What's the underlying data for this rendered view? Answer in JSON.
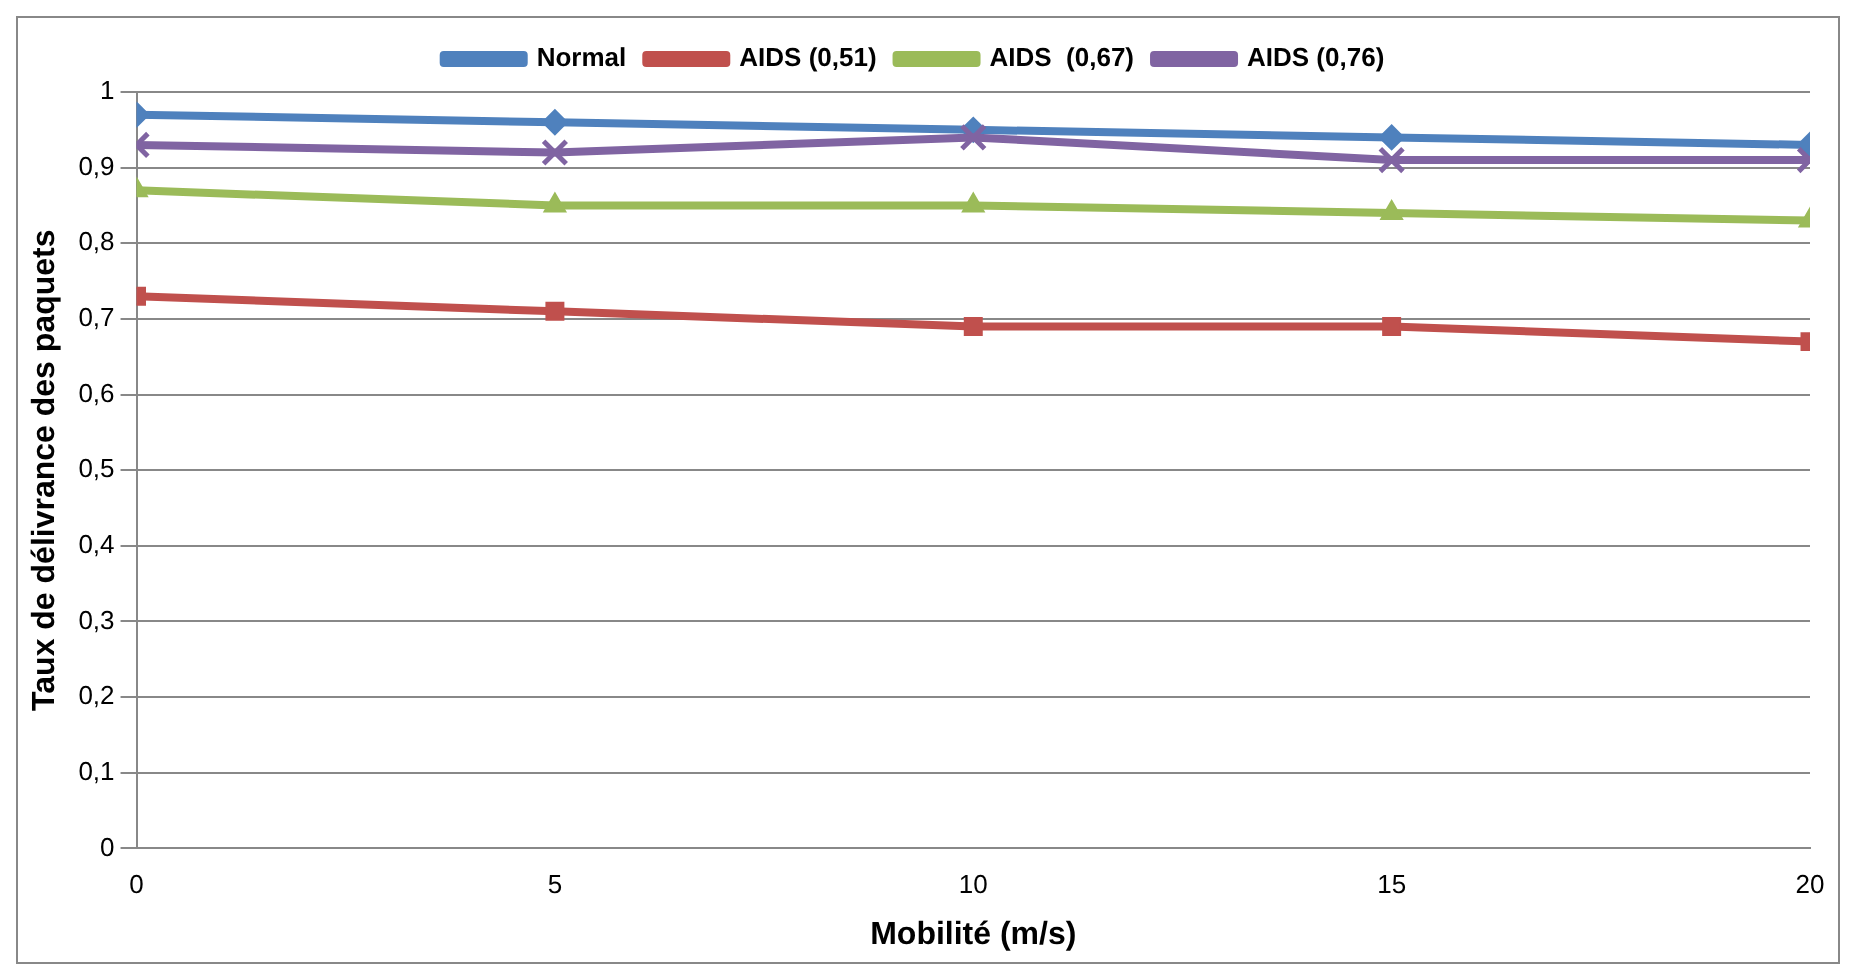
{
  "chart_data": {
    "type": "line",
    "xlabel": "Mobilité (m/s)",
    "ylabel": "Taux de délivrance des paquets",
    "x": [
      0,
      5,
      10,
      15,
      20
    ],
    "series": [
      {
        "name": "Normal",
        "color": "#4f81bd",
        "marker": "diamond",
        "values": [
          0.97,
          0.96,
          0.95,
          0.94,
          0.93
        ]
      },
      {
        "name": "AIDS (0,51)",
        "color": "#c0504d",
        "marker": "square",
        "values": [
          0.73,
          0.71,
          0.69,
          0.69,
          0.67
        ]
      },
      {
        "name": "AIDS  (0,67)",
        "color": "#9bbb59",
        "marker": "triangle",
        "values": [
          0.87,
          0.85,
          0.85,
          0.84,
          0.83
        ]
      },
      {
        "name": "AIDS (0,76)",
        "color": "#8064a2",
        "marker": "cross",
        "values": [
          0.93,
          0.92,
          0.94,
          0.91,
          0.91
        ]
      }
    ],
    "xlim": [
      0,
      20
    ],
    "xticks": [
      0,
      5,
      10,
      15,
      20
    ],
    "ylim": [
      0,
      1
    ],
    "yticks": [
      0,
      {
        "value": 0.1,
        "label": "0,1"
      },
      {
        "value": 0.2,
        "label": "0,2"
      },
      {
        "value": 0.3,
        "label": "0,3"
      },
      {
        "value": 0.4,
        "label": "0,4"
      },
      {
        "value": 0.5,
        "label": "0,5"
      },
      {
        "value": 0.6,
        "label": "0,6"
      },
      {
        "value": 0.7,
        "label": "0,7"
      },
      {
        "value": 0.8,
        "label": "0,8"
      },
      {
        "value": 0.9,
        "label": "0,9"
      },
      1
    ],
    "grid": "y",
    "legend": "top",
    "line_style": "solid"
  }
}
